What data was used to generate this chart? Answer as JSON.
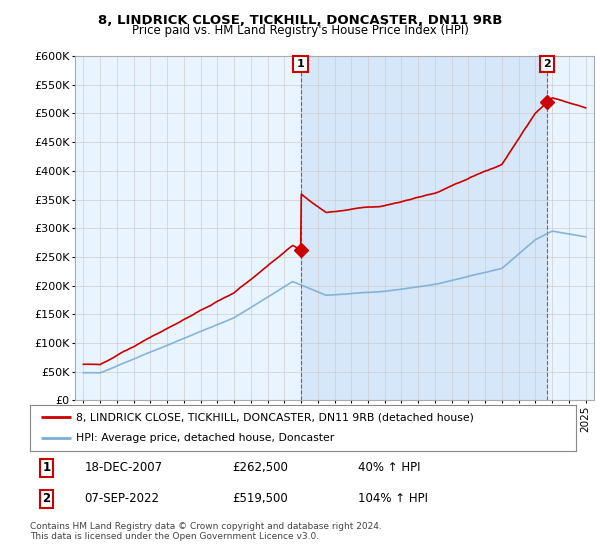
{
  "title": "8, LINDRICK CLOSE, TICKHILL, DONCASTER, DN11 9RB",
  "subtitle": "Price paid vs. HM Land Registry's House Price Index (HPI)",
  "ylim": [
    0,
    600000
  ],
  "yticks": [
    0,
    50000,
    100000,
    150000,
    200000,
    250000,
    300000,
    350000,
    400000,
    450000,
    500000,
    550000,
    600000
  ],
  "ytick_labels": [
    "£0",
    "£50K",
    "£100K",
    "£150K",
    "£200K",
    "£250K",
    "£300K",
    "£350K",
    "£400K",
    "£450K",
    "£500K",
    "£550K",
    "£600K"
  ],
  "red_color": "#cc0000",
  "blue_color": "#7aaed6",
  "fill_color": "#ddeeff",
  "sale1_year": 2007.97,
  "sale1_price": 262500,
  "sale2_year": 2022.69,
  "sale2_price": 519500,
  "legend_red": "8, LINDRICK CLOSE, TICKHILL, DONCASTER, DN11 9RB (detached house)",
  "legend_blue": "HPI: Average price, detached house, Doncaster",
  "footer": "Contains HM Land Registry data © Crown copyright and database right 2024.\nThis data is licensed under the Open Government Licence v3.0.",
  "background_color": "#ffffff",
  "grid_color": "#cccccc",
  "xlim_left": 1994.5,
  "xlim_right": 2025.5
}
